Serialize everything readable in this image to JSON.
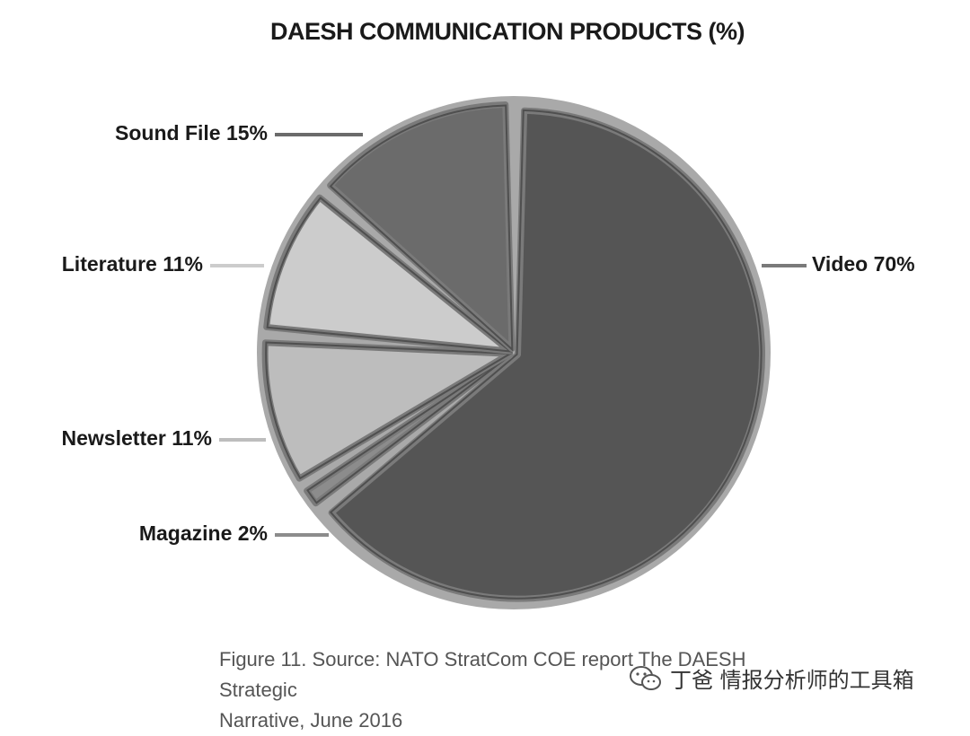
{
  "chart_data": {
    "type": "pie",
    "title": "DAESH COMMUNICATION PRODUCTS (%)",
    "slices": [
      {
        "label": "Video 70%",
        "name": "Video",
        "value": 70,
        "color": "#555555"
      },
      {
        "label": "Magazine 2%",
        "name": "Magazine",
        "value": 2,
        "color": "#8c8c8c"
      },
      {
        "label": "Newsletter 11%",
        "name": "Newsletter",
        "value": 11,
        "color": "#bdbdbd"
      },
      {
        "label": "Literature 11%",
        "name": "Literature",
        "value": 11,
        "color": "#cccccc"
      },
      {
        "label": "Sound File 15%",
        "name": "Sound File",
        "value": 15,
        "color": "#6b6b6b"
      }
    ],
    "legend": "none"
  },
  "caption": {
    "line1": "Figure 11. Source: NATO StratCom COE report The DAESH Strategic",
    "line2": "Narrative, June 2016"
  },
  "watermark": {
    "text": "丁爸 情报分析师的工具箱",
    "icon": "wechat-icon"
  }
}
